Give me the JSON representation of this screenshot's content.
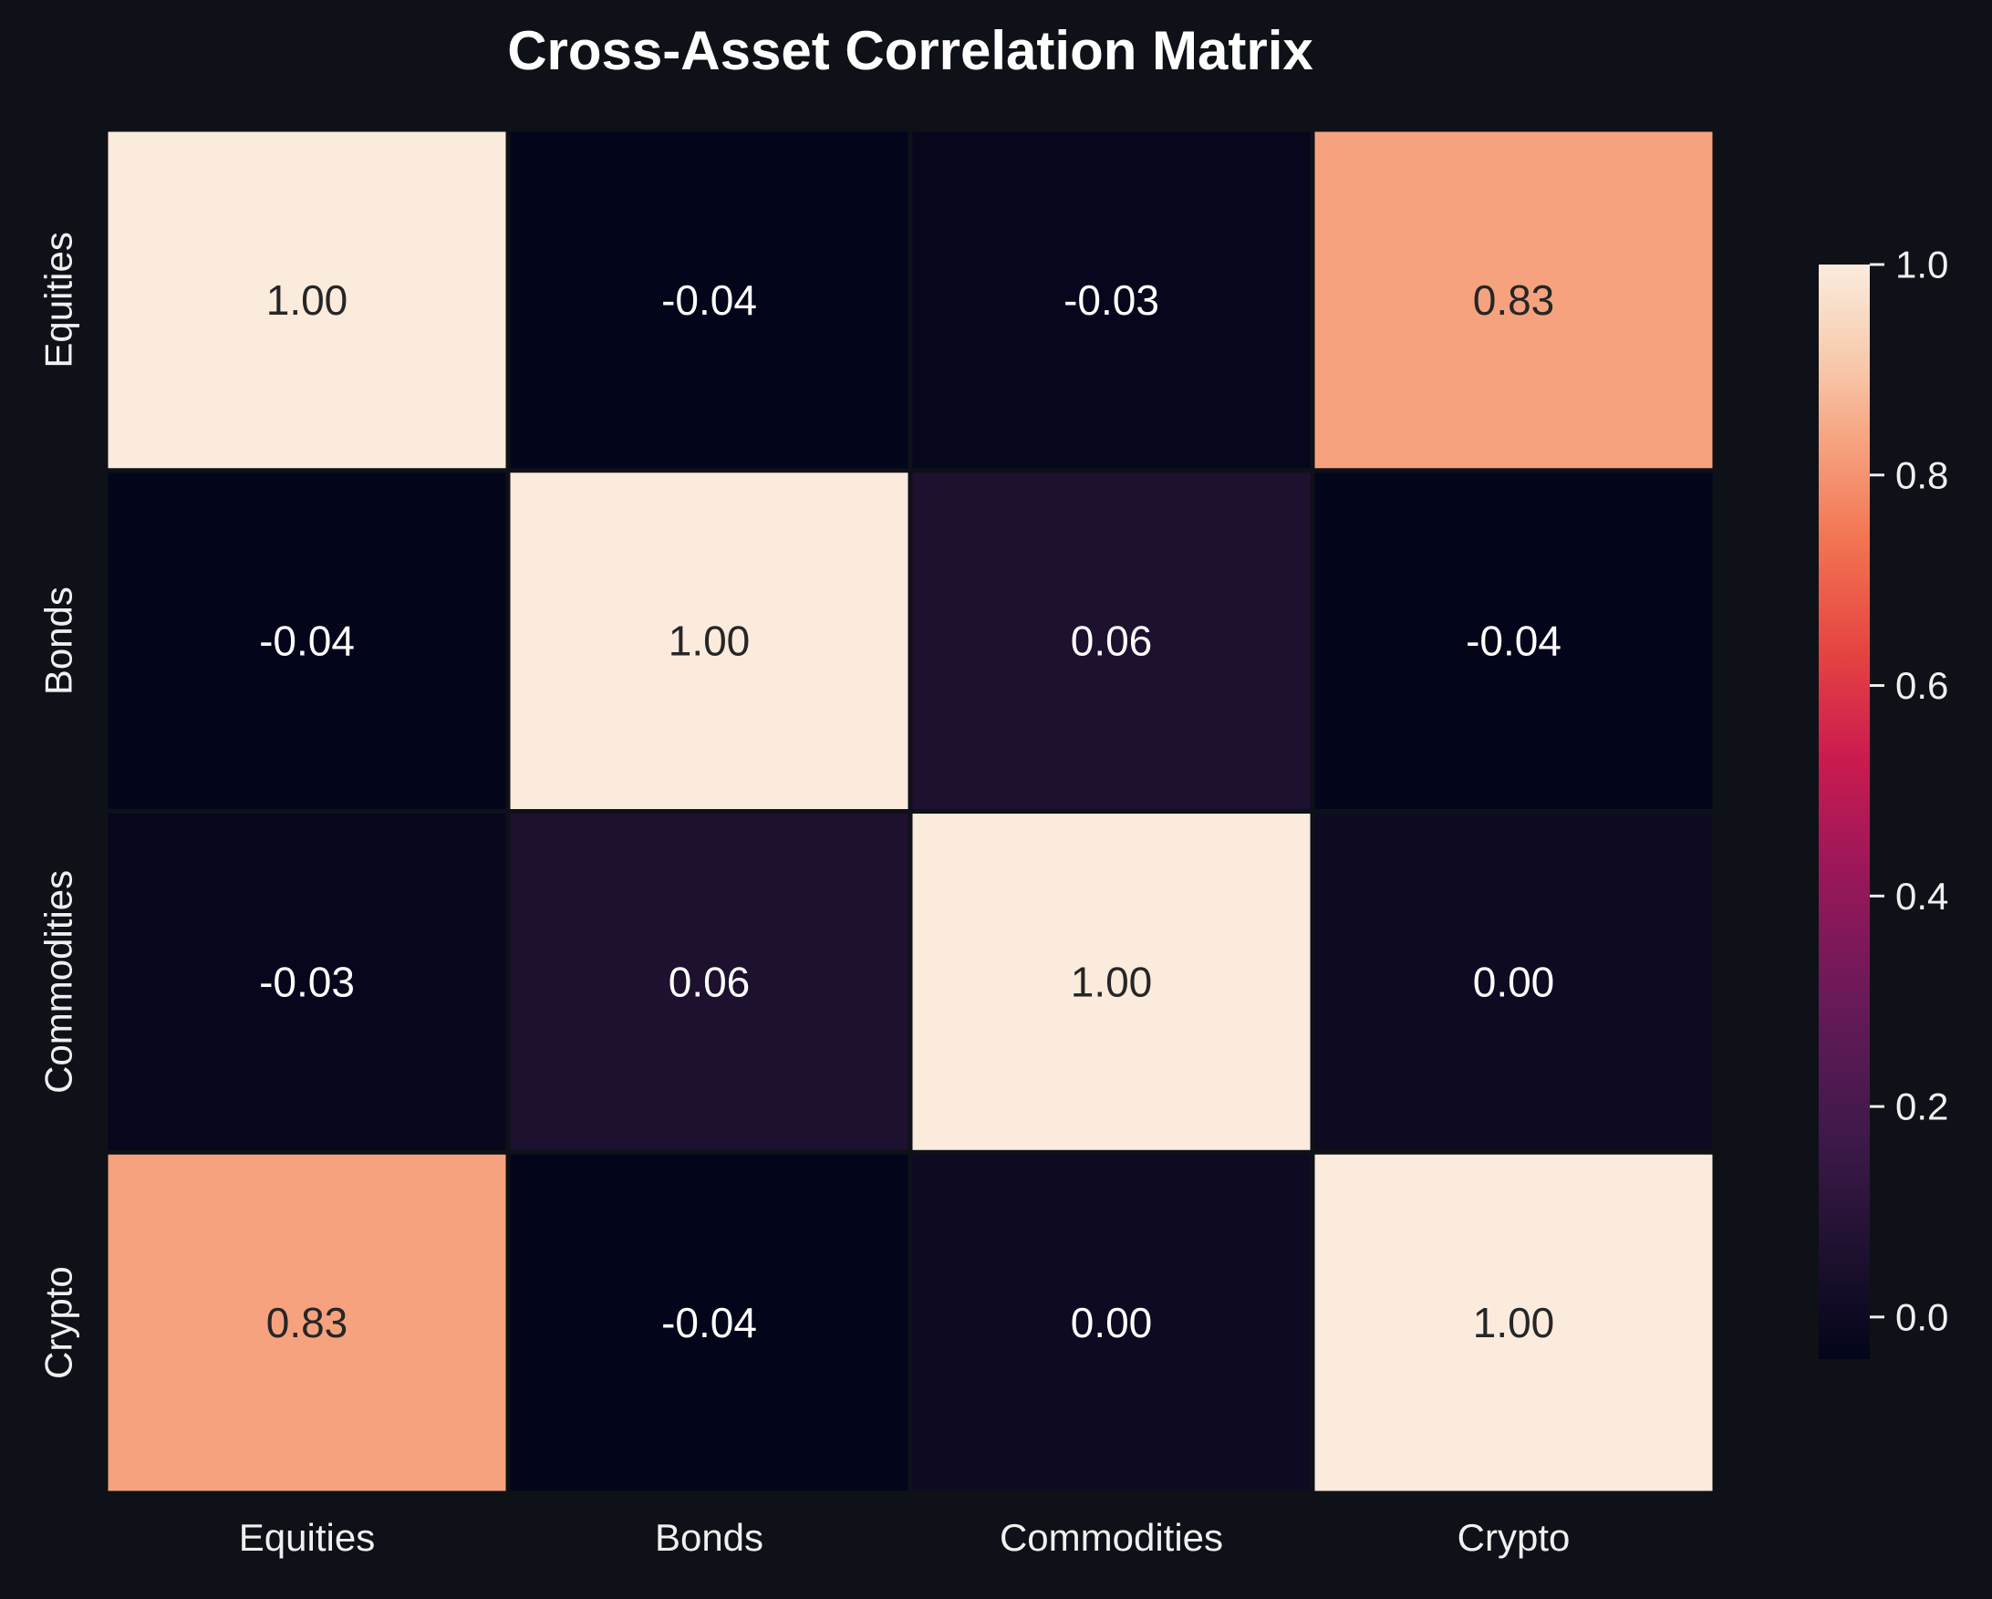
{
  "chart_data": {
    "type": "heatmap",
    "title": "Cross-Asset Correlation Matrix",
    "row_labels": [
      "Equities",
      "Bonds",
      "Commodities",
      "Crypto"
    ],
    "col_labels": [
      "Equities",
      "Bonds",
      "Commodities",
      "Crypto"
    ],
    "values": [
      [
        1.0,
        -0.04,
        -0.03,
        0.83
      ],
      [
        -0.04,
        1.0,
        0.06,
        -0.04
      ],
      [
        -0.03,
        0.06,
        1.0,
        0.0
      ],
      [
        0.83,
        -0.04,
        0.0,
        1.0
      ]
    ],
    "value_format": "0.00",
    "colorbar": {
      "vmin": -0.04,
      "vmax": 1.0,
      "ticks": [
        0.0,
        0.2,
        0.4,
        0.6,
        0.8,
        1.0
      ],
      "tick_labels": [
        "0.0",
        "0.2",
        "0.4",
        "0.6",
        "0.8",
        "1.0"
      ],
      "colormap": "rocket"
    },
    "colors": {
      "background": "#0e1117",
      "text": "#f0f0f0",
      "cell_gap": "#0e1117"
    }
  }
}
